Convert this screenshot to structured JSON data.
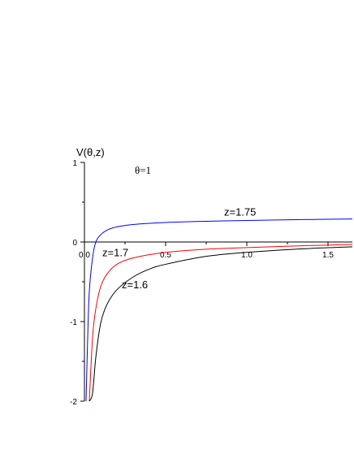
{
  "chart_data": {
    "type": "line",
    "ylabel": "V(θ,z)",
    "xlabel": "",
    "annotation": "θ=1",
    "xlim": [
      0,
      1.65
    ],
    "ylim": [
      -2,
      1
    ],
    "x_ticks": [
      {
        "value": 0.0,
        "label": "0.0"
      },
      {
        "value": 0.5,
        "label": "0.5"
      },
      {
        "value": 1.0,
        "label": "1.0"
      },
      {
        "value": 1.5,
        "label": "1.5"
      }
    ],
    "y_ticks": [
      {
        "value": 1,
        "label": "1"
      },
      {
        "value": 0,
        "label": "0"
      },
      {
        "value": -1,
        "label": "-1"
      },
      {
        "value": -2,
        "label": "-2"
      }
    ],
    "series": [
      {
        "name": "z=1.75",
        "color": "#0000ff",
        "label_at": [
          0.86,
          0.33
        ],
        "x": [
          0.01,
          0.02,
          0.03,
          0.05,
          0.07,
          0.1,
          0.14,
          0.2,
          0.3,
          0.5,
          0.75,
          1.0,
          1.3,
          1.65
        ],
        "y": [
          -2.0,
          -1.2,
          -0.62,
          -0.2,
          0.0,
          0.09,
          0.15,
          0.19,
          0.22,
          0.245,
          0.26,
          0.27,
          0.28,
          0.29
        ]
      },
      {
        "name": "z=1.7",
        "color": "#ff0000",
        "label_at": [
          0.11,
          -0.18
        ],
        "x": [
          0.03,
          0.05,
          0.07,
          0.1,
          0.14,
          0.2,
          0.3,
          0.5,
          0.75,
          1.0,
          1.3,
          1.65
        ],
        "y": [
          -2.0,
          -1.2,
          -0.84,
          -0.56,
          -0.4,
          -0.28,
          -0.2,
          -0.13,
          -0.09,
          -0.07,
          -0.05,
          -0.03
        ]
      },
      {
        "name": "z=1.6",
        "color": "#000000",
        "label_at": [
          0.23,
          -0.58
        ],
        "x": [
          0.03,
          0.05,
          0.07,
          0.1,
          0.14,
          0.2,
          0.3,
          0.4,
          0.5,
          0.75,
          1.0,
          1.3,
          1.65
        ],
        "y": [
          -2.0,
          -1.9,
          -1.45,
          -1.02,
          -0.78,
          -0.6,
          -0.44,
          -0.34,
          -0.28,
          -0.18,
          -0.13,
          -0.09,
          -0.06
        ]
      }
    ]
  }
}
